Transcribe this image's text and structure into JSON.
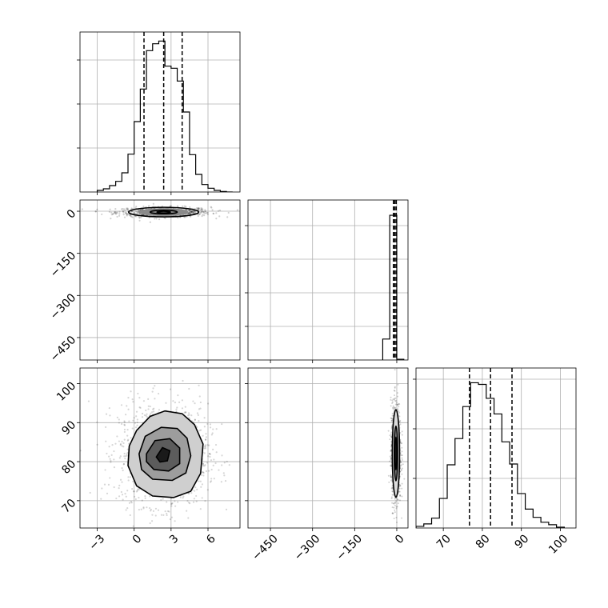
{
  "chart_data": {
    "type": "corner",
    "grid": true,
    "params": [
      {
        "ticks": [
          -3,
          0,
          3,
          6
        ],
        "tick_labels": [
          "−3",
          "0",
          "3",
          "6"
        ],
        "range": [
          -4.4,
          8.6
        ],
        "quantiles": [
          0.8,
          2.4,
          3.9
        ],
        "hist_bins": [
          -3.0,
          -2.5,
          -2.0,
          -1.5,
          -1.0,
          -0.5,
          0.0,
          0.5,
          1.0,
          1.5,
          2.0,
          2.5,
          3.0,
          3.5,
          4.0,
          4.5,
          5.0,
          5.5,
          6.0,
          6.5,
          7.0,
          7.5,
          8.0
        ],
        "hist_counts": [
          3,
          6,
          12,
          20,
          36,
          71,
          132,
          193,
          265,
          278,
          283,
          236,
          232,
          208,
          150,
          70,
          33,
          14,
          7,
          3,
          1,
          0
        ]
      },
      {
        "ticks": [
          -450,
          -300,
          -150,
          0
        ],
        "tick_labels": [
          "−450",
          "−300",
          "−150",
          "0"
        ],
        "range": [
          -530,
          40
        ],
        "quantiles": [
          -12,
          -7,
          -2
        ],
        "hist_bins": [
          -50,
          -25,
          0,
          25
        ],
        "hist_counts": [
          55,
          380,
          2
        ]
      },
      {
        "ticks": [
          70,
          80,
          90,
          100
        ],
        "tick_labels": [
          "70",
          "80",
          "90",
          "100"
        ],
        "range": [
          63,
          104
        ],
        "quantiles": [
          76.7,
          82.1,
          87.6
        ],
        "hist_bins": [
          63,
          65,
          67,
          69,
          71,
          73,
          75,
          77,
          79,
          81,
          83,
          85,
          87,
          89,
          91,
          93,
          95,
          97,
          99,
          101
        ],
        "hist_counts": [
          2,
          5,
          12,
          36,
          77,
          109,
          148,
          177,
          175,
          158,
          139,
          105,
          78,
          42,
          23,
          13,
          7,
          4,
          1
        ]
      }
    ],
    "hist_ylim": [
      0,
      300
    ],
    "hist3_ylim": [
      0,
      195
    ],
    "pair_1_0": {
      "center": [
        2.4,
        -3
      ],
      "contour_half_widths": [
        [
          2.85,
          17
        ],
        [
          1.1,
          6.5
        ],
        [
          0.55,
          3
        ]
      ],
      "core_half_width": 2.0
    },
    "pair_2_0": {
      "center": [
        2.4,
        81.8
      ],
      "contours": [
        [
          [
            -0.4,
            84
          ],
          [
            0.2,
            88
          ],
          [
            1.3,
            91.6
          ],
          [
            2.5,
            93
          ],
          [
            3.9,
            92.3
          ],
          [
            4.9,
            89.5
          ],
          [
            5.6,
            84.5
          ],
          [
            5.4,
            77
          ],
          [
            4.6,
            72.4
          ],
          [
            3.2,
            70.8
          ],
          [
            1.5,
            71.2
          ],
          [
            0.2,
            73.8
          ],
          [
            -0.5,
            79
          ]
        ],
        [
          [
            0.4,
            82
          ],
          [
            0.9,
            86.5
          ],
          [
            2.2,
            88.8
          ],
          [
            3.5,
            88.5
          ],
          [
            4.3,
            86
          ],
          [
            4.6,
            81.5
          ],
          [
            4.2,
            77.1
          ],
          [
            3.1,
            75.2
          ],
          [
            1.5,
            75.5
          ],
          [
            0.6,
            78
          ]
        ],
        [
          [
            1.0,
            82
          ],
          [
            1.7,
            85.4
          ],
          [
            2.9,
            85.9
          ],
          [
            3.7,
            83.5
          ],
          [
            3.7,
            79.5
          ],
          [
            2.8,
            77.6
          ],
          [
            1.6,
            78
          ],
          [
            1.0,
            80
          ]
        ],
        [
          [
            1.8,
            81.2
          ],
          [
            2.3,
            83.6
          ],
          [
            2.9,
            82.8
          ],
          [
            2.7,
            80.2
          ],
          [
            2.1,
            79.9
          ]
        ]
      ]
    },
    "pair_2_1": {
      "center": [
        -3,
        82.1
      ],
      "contour_half_widths": [
        [
          13,
          11.2
        ],
        [
          6,
          7
        ],
        [
          3,
          4.2
        ]
      ]
    }
  }
}
